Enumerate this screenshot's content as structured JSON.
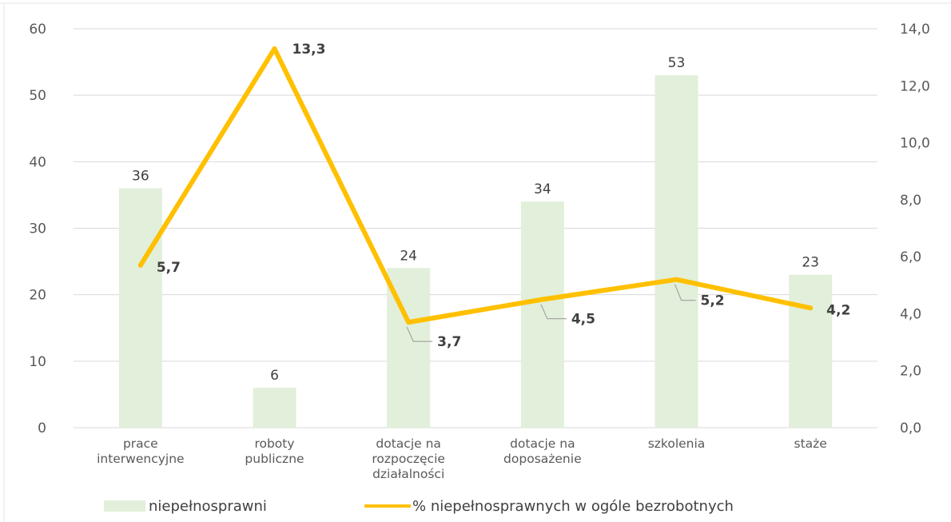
{
  "chart_data": {
    "type": "bar",
    "categories": [
      [
        "prace",
        "interwencyjne"
      ],
      [
        "roboty",
        "publiczne"
      ],
      [
        "dotacje na",
        "rozpoczęcie",
        "działalności"
      ],
      [
        "dotacje na",
        "doposażenie"
      ],
      [
        "szkolenia"
      ],
      [
        "staże"
      ]
    ],
    "series": [
      {
        "name": "niepełnosprawni",
        "type": "bar",
        "axis": "left",
        "values": [
          36,
          6,
          24,
          34,
          53,
          23
        ],
        "labels": [
          "36",
          "6",
          "24",
          "34",
          "53",
          "23"
        ],
        "color": "#e2efda"
      },
      {
        "name": "% niepełnosprawnych w ogóle bezrobotnych",
        "type": "line",
        "axis": "right",
        "values": [
          5.7,
          13.3,
          3.7,
          4.5,
          5.2,
          4.2
        ],
        "labels": [
          "5,7",
          "13,3",
          "3,7",
          "4,5",
          "5,2",
          "4,2"
        ],
        "color": "#ffc000"
      }
    ],
    "y_left": {
      "ylim": [
        0,
        60
      ],
      "ticks": [
        "0",
        "10",
        "20",
        "30",
        "40",
        "50",
        "60"
      ]
    },
    "y_right": {
      "ylim": [
        0,
        14
      ],
      "ticks": [
        "0,0",
        "2,0",
        "4,0",
        "6,0",
        "8,0",
        "10,0",
        "12,0",
        "14,0"
      ]
    },
    "grid": true,
    "legend": "bottom"
  }
}
